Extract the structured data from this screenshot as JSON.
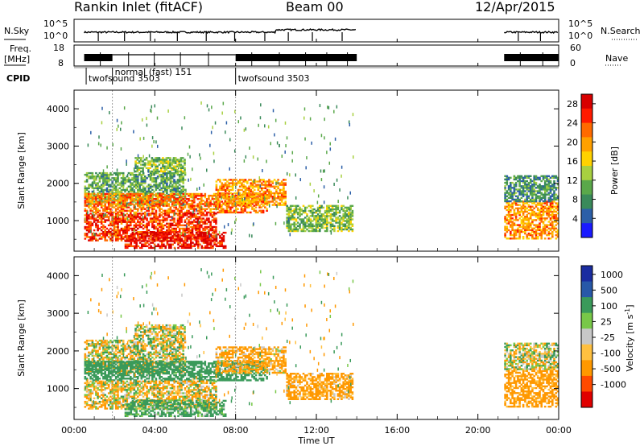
{
  "header": {
    "station": "Rankin Inlet (fitACF)",
    "beam": "Beam 00",
    "date": "12/Apr/2015"
  },
  "nsky_panel": {
    "left_label": "N.Sky",
    "right_label": "N.Search",
    "left_ticks": [
      "10^5",
      "10^0"
    ],
    "right_ticks": [
      "10^5",
      "10^0"
    ]
  },
  "freq_panel": {
    "left_label_1": "Freq.",
    "left_label_2": "[MHz]",
    "right_label": "Nave",
    "left_ticks": [
      "18",
      "8"
    ],
    "right_ticks": [
      "60",
      "0"
    ]
  },
  "cpid_panel": {
    "label": "CPID",
    "modes": [
      {
        "name": "twofsound 3503",
        "start_hour": 0.6
      },
      {
        "name": "normal (fast) 151",
        "start_hour": 1.9
      },
      {
        "name": "twofsound 3503",
        "start_hour": 8.0
      }
    ]
  },
  "power_panel": {
    "ylabel": "Slant Range [km]",
    "colorbar_label": "Power [dB]",
    "colorbar_ticks": [
      "28",
      "24",
      "20",
      "16",
      "12",
      "8",
      "4"
    ]
  },
  "velocity_panel": {
    "ylabel": "Slant Range [km]",
    "colorbar_label": "Velocity [m s^-1]",
    "colorbar_ticks": [
      "1000",
      "500",
      "100",
      "25",
      "-25",
      "-100",
      "-500",
      "-1000"
    ]
  },
  "time_axis": {
    "label": "Time UT",
    "ticks": [
      "00:00",
      "04:00",
      "08:00",
      "12:00",
      "16:00",
      "20:00",
      "00:00"
    ]
  },
  "range_ticks": [
    "4000",
    "3000",
    "2000",
    "1000"
  ],
  "chart_data": {
    "type": "heatmap",
    "xlabel": "Time UT",
    "ylabel": "Slant Range [km]",
    "xlim_hours": [
      0,
      24
    ],
    "ylim_km": [
      180,
      4500
    ],
    "power_scale_db": [
      0,
      30
    ],
    "velocity_scale_ms": [
      -1000,
      1000
    ],
    "backscatter_regions": [
      {
        "t0": 0.5,
        "t1": 5.5,
        "r0": 1400,
        "r1": 2300,
        "power": 10,
        "velocity": 0
      },
      {
        "t0": 3.0,
        "t1": 5.5,
        "r0": 2300,
        "r1": 2700,
        "power": 12,
        "velocity": 0
      },
      {
        "t0": 0.5,
        "t1": 9.5,
        "r0": 1200,
        "r1": 1700,
        "power": 22,
        "velocity": 300
      },
      {
        "t0": 0.5,
        "t1": 7.0,
        "r0": 450,
        "r1": 1200,
        "power": 25,
        "velocity": -60
      },
      {
        "t0": 2.5,
        "t1": 7.5,
        "r0": 250,
        "r1": 700,
        "power": 27,
        "velocity": 200
      },
      {
        "t0": 7.0,
        "t1": 10.5,
        "r0": 1400,
        "r1": 2100,
        "power": 20,
        "velocity": -150
      },
      {
        "t0": 10.5,
        "t1": 13.8,
        "r0": 700,
        "r1": 1400,
        "power": 12,
        "velocity": -200
      },
      {
        "t0": 21.3,
        "t1": 24.0,
        "r0": 500,
        "r1": 1500,
        "power": 20,
        "velocity": -250
      },
      {
        "t0": 21.3,
        "t1": 24.0,
        "r0": 1500,
        "r1": 2200,
        "power": 8,
        "velocity": 0
      }
    ],
    "nsky_coverage_hours": [
      [
        0.5,
        14.0
      ],
      [
        21.3,
        24.0
      ]
    ]
  },
  "colors": {
    "power_scale": [
      "#1a1aff",
      "#2c5fa8",
      "#3a8a5a",
      "#5aa84a",
      "#a8d040",
      "#ffd200",
      "#ffa000",
      "#ff6a00",
      "#ff1a00",
      "#d80000"
    ],
    "velocity_scale": [
      "#e00000",
      "#ff4a00",
      "#ff9800",
      "#ffc040",
      "#c8c8c8",
      "#78c848",
      "#3a9a5a",
      "#2858a8",
      "#1a2ca0"
    ]
  }
}
